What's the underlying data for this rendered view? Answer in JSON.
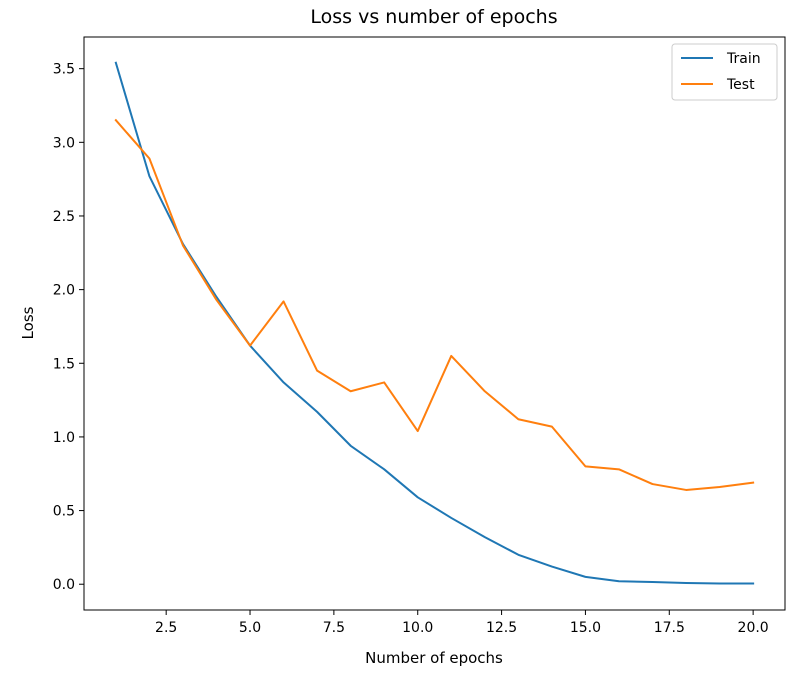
{
  "chart_data": {
    "type": "line",
    "title": "Loss vs number of epochs",
    "xlabel": "Number of epochs",
    "ylabel": "Loss",
    "xlim": [
      0.05,
      20.95
    ],
    "ylim": [
      -0.175,
      3.715
    ],
    "xticks": [
      2.5,
      5.0,
      7.5,
      10.0,
      12.5,
      15.0,
      17.5,
      20.0
    ],
    "xtick_labels": [
      "2.5",
      "5.0",
      "7.5",
      "10.0",
      "12.5",
      "15.0",
      "17.5",
      "20.0"
    ],
    "yticks": [
      0.0,
      0.5,
      1.0,
      1.5,
      2.0,
      2.5,
      3.0,
      3.5
    ],
    "ytick_labels": [
      "0.0",
      "0.5",
      "1.0",
      "1.5",
      "2.0",
      "2.5",
      "3.0",
      "3.5"
    ],
    "grid": false,
    "legend_position": "top-right",
    "x": [
      1,
      2,
      3,
      4,
      5,
      6,
      7,
      8,
      9,
      10,
      11,
      12,
      13,
      14,
      15,
      16,
      17,
      18,
      19,
      20
    ],
    "series": [
      {
        "name": "Train",
        "color": "#1f77b4",
        "values": [
          3.54,
          2.77,
          2.31,
          1.95,
          1.62,
          1.37,
          1.17,
          0.94,
          0.78,
          0.59,
          0.45,
          0.32,
          0.2,
          0.12,
          0.05,
          0.02,
          0.015,
          0.008,
          0.005,
          0.005
        ]
      },
      {
        "name": "Test",
        "color": "#ff7f0e",
        "values": [
          3.15,
          2.89,
          2.3,
          1.93,
          1.62,
          1.92,
          1.45,
          1.31,
          1.37,
          1.04,
          1.55,
          1.31,
          1.12,
          1.07,
          0.8,
          0.78,
          0.68,
          0.64,
          0.66,
          0.69
        ]
      }
    ]
  }
}
